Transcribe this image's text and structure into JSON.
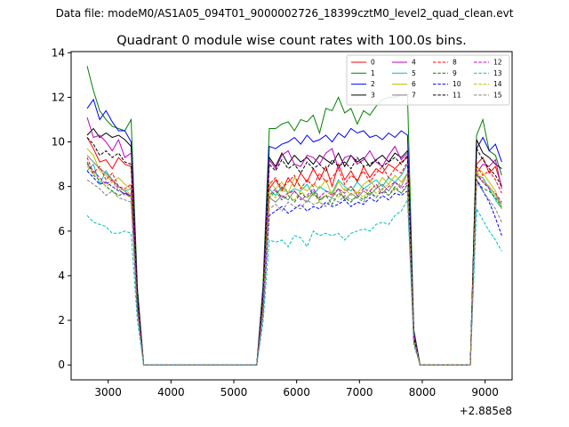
{
  "suptitle": "Data file: modeM0/AS1A05_094T01_9000002726_18399cztM0_level2_quad_clean.evt",
  "chart_data": {
    "type": "line",
    "title": "Quadrant 0 module wise count rates with 100.0s bins.",
    "xlabel": "",
    "ylabel": "",
    "offset_label": "+2.885e8",
    "xlim": [
      2410,
      9430
    ],
    "ylim": [
      -0.67,
      14.05
    ],
    "x_ticks": [
      3000,
      4000,
      5000,
      6000,
      7000,
      8000,
      9000
    ],
    "x_tick_labels": [
      "3000",
      "4000",
      "5000",
      "6000",
      "7000",
      "8000",
      "9000"
    ],
    "y_ticks": [
      0,
      2,
      4,
      6,
      8,
      10,
      12,
      14
    ],
    "y_tick_labels": [
      "0",
      "2",
      "4",
      "6",
      "8",
      "10",
      "12",
      "14"
    ],
    "grid": false,
    "legend_position": "top-right",
    "legend_columns": 4,
    "x": [
      2665,
      2765,
      2865,
      2965,
      3065,
      3165,
      3265,
      3365,
      3465,
      3565,
      3665,
      3765,
      3865,
      3965,
      4065,
      4165,
      4265,
      4365,
      4465,
      4565,
      4665,
      4765,
      4865,
      4965,
      5065,
      5165,
      5265,
      5365,
      5465,
      5565,
      5665,
      5765,
      5865,
      5965,
      6065,
      6165,
      6265,
      6365,
      6465,
      6565,
      6665,
      6765,
      6865,
      6965,
      7065,
      7165,
      7265,
      7365,
      7465,
      7565,
      7665,
      7765,
      7865,
      7965,
      8065,
      8165,
      8265,
      8365,
      8465,
      8565,
      8665,
      8765,
      8865,
      8965,
      9065,
      9165,
      9265
    ],
    "series": [
      {
        "name": "0",
        "color": "#ff0000",
        "dash": "solid",
        "values": [
          10.2,
          9.7,
          9.1,
          9.2,
          8.8,
          9.3,
          9.0,
          8.9,
          3.0,
          0,
          0,
          0,
          0,
          0,
          0,
          0,
          0,
          0,
          0,
          0,
          0,
          0,
          0,
          0,
          0,
          0,
          0,
          0,
          3.0,
          7.9,
          8.3,
          7.8,
          8.4,
          8.0,
          8.6,
          8.2,
          8.8,
          8.3,
          8.9,
          8.0,
          9.0,
          8.3,
          8.7,
          8.2,
          8.9,
          8.4,
          8.8,
          8.6,
          9.0,
          8.8,
          9.1,
          9.3,
          1.3,
          0,
          0,
          0,
          0,
          0,
          0,
          0,
          0,
          0,
          9.0,
          9.3,
          8.6,
          8.9,
          8.0
        ]
      },
      {
        "name": "1",
        "color": "#008000",
        "dash": "solid",
        "values": [
          13.4,
          12.3,
          11.4,
          11.0,
          10.7,
          10.6,
          10.5,
          11.0,
          3.5,
          0,
          0,
          0,
          0,
          0,
          0,
          0,
          0,
          0,
          0,
          0,
          0,
          0,
          0,
          0,
          0,
          0,
          0,
          0,
          3.6,
          10.6,
          10.6,
          10.8,
          10.9,
          10.5,
          11.0,
          10.9,
          11.2,
          10.4,
          11.5,
          11.4,
          12.0,
          11.3,
          11.5,
          10.8,
          11.4,
          11.2,
          11.6,
          11.9,
          12.0,
          12.0,
          12.1,
          12.1,
          1.6,
          0,
          0,
          0,
          0,
          0,
          0,
          0,
          0,
          0,
          10.3,
          11.0,
          9.6,
          9.4,
          8.5
        ]
      },
      {
        "name": "2",
        "color": "#0000ff",
        "dash": "solid",
        "values": [
          11.5,
          11.9,
          11.0,
          11.4,
          10.9,
          10.5,
          10.5,
          10.0,
          3.2,
          0,
          0,
          0,
          0,
          0,
          0,
          0,
          0,
          0,
          0,
          0,
          0,
          0,
          0,
          0,
          0,
          0,
          0,
          0,
          3.3,
          9.8,
          9.7,
          9.9,
          10.0,
          10.2,
          9.9,
          10.3,
          10.0,
          10.1,
          10.3,
          10.0,
          10.4,
          10.2,
          10.6,
          10.4,
          10.5,
          10.2,
          10.3,
          10.1,
          10.4,
          10.2,
          10.5,
          10.3,
          1.5,
          0,
          0,
          0,
          0,
          0,
          0,
          0,
          0,
          0,
          9.7,
          10.2,
          9.6,
          9.9,
          9.1
        ]
      },
      {
        "name": "3",
        "color": "#000000",
        "dash": "solid",
        "values": [
          10.3,
          10.6,
          10.2,
          10.4,
          10.2,
          10.3,
          10.1,
          9.8,
          3.2,
          0,
          0,
          0,
          0,
          0,
          0,
          0,
          0,
          0,
          0,
          0,
          0,
          0,
          0,
          0,
          0,
          0,
          0,
          0,
          3.2,
          9.3,
          8.9,
          9.5,
          9.0,
          9.4,
          9.1,
          9.3,
          9.0,
          9.4,
          9.2,
          9.0,
          9.5,
          8.9,
          9.4,
          9.1,
          9.3,
          8.9,
          9.2,
          9.4,
          9.1,
          9.5,
          9.3,
          9.6,
          1.4,
          0,
          0,
          0,
          0,
          0,
          0,
          0,
          0,
          0,
          10.1,
          9.5,
          9.3,
          9.0,
          8.8
        ]
      },
      {
        "name": "4",
        "color": "#bf00bf",
        "dash": "solid",
        "values": [
          11.1,
          10.2,
          10.3,
          10.0,
          9.6,
          10.1,
          9.3,
          9.5,
          3.0,
          0,
          0,
          0,
          0,
          0,
          0,
          0,
          0,
          0,
          0,
          0,
          0,
          0,
          0,
          0,
          0,
          0,
          0,
          0,
          3.1,
          9.2,
          8.8,
          9.4,
          9.6,
          9.0,
          8.9,
          9.4,
          9.3,
          9.0,
          9.5,
          9.7,
          8.8,
          9.3,
          9.4,
          9.0,
          9.2,
          9.6,
          9.1,
          8.9,
          9.4,
          9.8,
          9.2,
          9.5,
          1.4,
          0,
          0,
          0,
          0,
          0,
          0,
          0,
          0,
          0,
          8.6,
          9.0,
          8.9,
          9.2,
          7.9
        ]
      },
      {
        "name": "5",
        "color": "#00bfbf",
        "dash": "solid",
        "values": [
          8.7,
          9.0,
          8.1,
          8.7,
          8.3,
          8.0,
          7.8,
          7.9,
          2.6,
          0,
          0,
          0,
          0,
          0,
          0,
          0,
          0,
          0,
          0,
          0,
          0,
          0,
          0,
          0,
          0,
          0,
          0,
          0,
          2.6,
          7.9,
          7.6,
          8.0,
          7.7,
          7.9,
          7.8,
          8.1,
          7.6,
          8.0,
          7.8,
          7.7,
          8.3,
          8.0,
          7.8,
          8.2,
          7.9,
          8.1,
          8.3,
          8.0,
          8.4,
          8.2,
          8.5,
          9.0,
          1.2,
          0,
          0,
          0,
          0,
          0,
          0,
          0,
          0,
          0,
          8.5,
          8.4,
          7.9,
          7.4,
          7.0
        ]
      },
      {
        "name": "6",
        "color": "#bfbf00",
        "dash": "solid",
        "values": [
          9.7,
          9.4,
          8.7,
          8.5,
          8.2,
          8.4,
          8.1,
          7.9,
          2.6,
          0,
          0,
          0,
          0,
          0,
          0,
          0,
          0,
          0,
          0,
          0,
          0,
          0,
          0,
          0,
          0,
          0,
          0,
          0,
          2.6,
          8.2,
          7.9,
          8.2,
          7.7,
          8.4,
          8.0,
          7.8,
          8.1,
          7.9,
          8.3,
          7.6,
          8.2,
          7.8,
          8.0,
          7.7,
          8.1,
          8.3,
          7.9,
          8.4,
          8.1,
          8.5,
          8.2,
          8.6,
          1.2,
          0,
          0,
          0,
          0,
          0,
          0,
          0,
          0,
          0,
          8.9,
          8.6,
          8.2,
          7.8,
          7.0
        ]
      },
      {
        "name": "7",
        "color": "#808080",
        "dash": "solid",
        "values": [
          9.4,
          9.1,
          8.8,
          8.6,
          8.3,
          8.0,
          7.8,
          7.5,
          2.5,
          0,
          0,
          0,
          0,
          0,
          0,
          0,
          0,
          0,
          0,
          0,
          0,
          0,
          0,
          0,
          0,
          0,
          0,
          0,
          2.5,
          7.5,
          7.3,
          7.6,
          7.4,
          7.8,
          7.5,
          7.3,
          7.7,
          7.4,
          7.6,
          7.5,
          7.9,
          7.4,
          7.7,
          7.5,
          7.8,
          7.6,
          7.9,
          8.1,
          7.8,
          8.2,
          8.0,
          8.6,
          1.1,
          0,
          0,
          0,
          0,
          0,
          0,
          0,
          0,
          0,
          8.5,
          8.2,
          8.0,
          7.6,
          7.2
        ]
      },
      {
        "name": "8",
        "color": "#ff0000",
        "dash": "dashed",
        "values": [
          9.3,
          8.6,
          8.9,
          8.3,
          8.6,
          8.0,
          7.9,
          8.1,
          2.6,
          0,
          0,
          0,
          0,
          0,
          0,
          0,
          0,
          0,
          0,
          0,
          0,
          0,
          0,
          0,
          0,
          0,
          0,
          0,
          2.6,
          8.1,
          8.4,
          7.9,
          8.2,
          8.5,
          7.9,
          8.3,
          8.0,
          8.6,
          8.2,
          8.4,
          8.8,
          8.1,
          8.5,
          8.3,
          8.7,
          8.2,
          8.6,
          8.9,
          8.4,
          8.8,
          8.6,
          9.1,
          1.2,
          0,
          0,
          0,
          0,
          0,
          0,
          0,
          0,
          0,
          8.9,
          8.5,
          8.7,
          8.3,
          7.7
        ]
      },
      {
        "name": "9",
        "color": "#008000",
        "dash": "dashed",
        "values": [
          9.1,
          8.5,
          8.3,
          8.0,
          7.8,
          7.6,
          7.7,
          7.5,
          2.5,
          0,
          0,
          0,
          0,
          0,
          0,
          0,
          0,
          0,
          0,
          0,
          0,
          0,
          0,
          0,
          0,
          0,
          0,
          0,
          2.5,
          7.5,
          7.8,
          7.4,
          7.6,
          7.3,
          7.7,
          7.5,
          7.8,
          7.4,
          7.6,
          7.2,
          7.7,
          7.5,
          7.3,
          7.6,
          7.4,
          7.8,
          7.5,
          7.9,
          7.6,
          8.0,
          7.7,
          8.1,
          1.1,
          0,
          0,
          0,
          0,
          0,
          0,
          0,
          0,
          0,
          8.3,
          7.9,
          7.8,
          7.5,
          7.1
        ]
      },
      {
        "name": "10",
        "color": "#0000ff",
        "dash": "dashed",
        "values": [
          8.7,
          8.4,
          8.1,
          8.2,
          8.0,
          7.8,
          7.7,
          7.6,
          2.5,
          0,
          0,
          0,
          0,
          0,
          0,
          0,
          0,
          0,
          0,
          0,
          0,
          0,
          0,
          0,
          0,
          0,
          0,
          0,
          2.3,
          6.7,
          6.9,
          7.1,
          6.8,
          7.0,
          7.2,
          6.9,
          7.1,
          7.0,
          7.3,
          7.1,
          7.2,
          7.4,
          7.1,
          7.3,
          7.2,
          7.5,
          7.3,
          7.6,
          7.4,
          7.7,
          7.6,
          7.8,
          1.1,
          0,
          0,
          0,
          0,
          0,
          0,
          0,
          0,
          0,
          8.3,
          7.8,
          7.3,
          6.6,
          5.8
        ]
      },
      {
        "name": "11",
        "color": "#000000",
        "dash": "dashed",
        "values": [
          10.2,
          9.9,
          9.4,
          9.6,
          9.3,
          9.5,
          9.1,
          9.0,
          3.0,
          0,
          0,
          0,
          0,
          0,
          0,
          0,
          0,
          0,
          0,
          0,
          0,
          0,
          0,
          0,
          0,
          0,
          0,
          0,
          3.0,
          9.0,
          8.7,
          9.2,
          8.8,
          9.0,
          8.6,
          9.1,
          8.8,
          9.0,
          8.7,
          9.2,
          8.9,
          9.1,
          8.8,
          9.3,
          8.9,
          9.0,
          9.2,
          8.9,
          9.1,
          9.3,
          9.0,
          9.4,
          1.3,
          0,
          0,
          0,
          0,
          0,
          0,
          0,
          0,
          0,
          9.7,
          9.2,
          8.8,
          8.5,
          8.0
        ]
      },
      {
        "name": "12",
        "color": "#bf00bf",
        "dash": "dashed",
        "values": [
          9.0,
          8.7,
          8.4,
          8.1,
          8.3,
          7.9,
          7.6,
          7.7,
          2.5,
          0,
          0,
          0,
          0,
          0,
          0,
          0,
          0,
          0,
          0,
          0,
          0,
          0,
          0,
          0,
          0,
          0,
          0,
          0,
          2.5,
          7.6,
          7.9,
          7.5,
          7.7,
          7.8,
          7.4,
          7.6,
          7.9,
          7.5,
          7.8,
          7.6,
          7.9,
          7.7,
          8.0,
          7.6,
          7.9,
          7.8,
          8.1,
          7.7,
          8.0,
          8.2,
          7.9,
          8.2,
          1.1,
          0,
          0,
          0,
          0,
          0,
          0,
          0,
          0,
          0,
          8.6,
          8.2,
          7.9,
          7.7,
          7.3
        ]
      },
      {
        "name": "13",
        "color": "#00bfbf",
        "dash": "dashed",
        "values": [
          6.7,
          6.4,
          6.3,
          6.2,
          5.9,
          5.9,
          6.0,
          5.9,
          2.0,
          0,
          0,
          0,
          0,
          0,
          0,
          0,
          0,
          0,
          0,
          0,
          0,
          0,
          0,
          0,
          0,
          0,
          0,
          0,
          1.9,
          5.6,
          5.5,
          5.6,
          5.3,
          5.8,
          5.7,
          5.3,
          6.0,
          5.8,
          5.9,
          5.8,
          5.9,
          5.6,
          5.9,
          6.0,
          6.1,
          6.0,
          6.3,
          6.4,
          6.3,
          6.7,
          6.9,
          7.4,
          0.9,
          0,
          0,
          0,
          0,
          0,
          0,
          0,
          0,
          0,
          7.0,
          6.5,
          6.0,
          5.6,
          5.1
        ]
      },
      {
        "name": "14",
        "color": "#bfbf00",
        "dash": "dashed",
        "values": [
          8.9,
          8.6,
          8.3,
          8.0,
          8.2,
          7.8,
          7.9,
          7.6,
          2.5,
          0,
          0,
          0,
          0,
          0,
          0,
          0,
          0,
          0,
          0,
          0,
          0,
          0,
          0,
          0,
          0,
          0,
          0,
          0,
          2.5,
          7.7,
          7.5,
          7.9,
          7.6,
          7.4,
          7.8,
          7.5,
          7.7,
          7.3,
          7.6,
          7.8,
          7.5,
          7.9,
          7.6,
          7.8,
          7.5,
          8.0,
          7.7,
          7.9,
          8.1,
          7.8,
          8.2,
          8.3,
          1.1,
          0,
          0,
          0,
          0,
          0,
          0,
          0,
          0,
          0,
          8.7,
          8.3,
          8.0,
          7.6,
          7.0
        ]
      },
      {
        "name": "15",
        "color": "#808080",
        "dash": "dashed",
        "values": [
          8.3,
          8.1,
          7.9,
          7.6,
          7.8,
          7.5,
          7.4,
          7.3,
          2.4,
          0,
          0,
          0,
          0,
          0,
          0,
          0,
          0,
          0,
          0,
          0,
          0,
          0,
          0,
          0,
          0,
          0,
          0,
          0,
          2.3,
          7.0,
          7.2,
          6.9,
          7.3,
          7.1,
          7.0,
          7.4,
          7.2,
          7.3,
          7.1,
          7.5,
          7.3,
          7.6,
          7.4,
          7.5,
          7.3,
          7.7,
          7.5,
          7.8,
          7.6,
          7.9,
          7.7,
          8.0,
          1.0,
          0,
          0,
          0,
          0,
          0,
          0,
          0,
          0,
          0,
          8.2,
          7.8,
          7.4,
          7.0,
          6.4
        ]
      }
    ]
  }
}
